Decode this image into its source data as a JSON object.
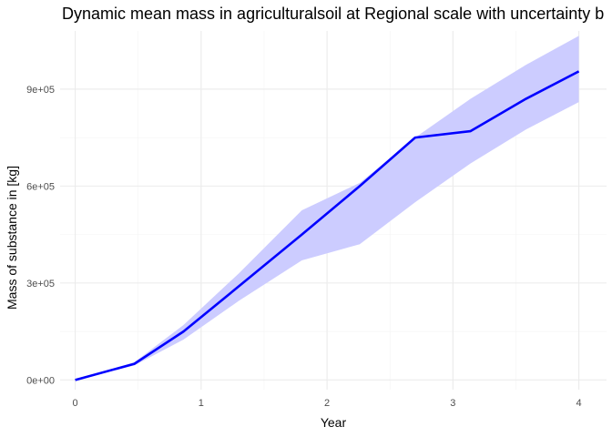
{
  "chart_data": {
    "type": "line",
    "title": "Dynamic mean mass in agriculturalsoil  at  Regional  scale with uncertainty b",
    "xlabel": "Year",
    "ylabel": "Mass of substance in [kg]",
    "xlim": [
      -0.12,
      4.22
    ],
    "ylim": [
      -30000,
      1080000
    ],
    "x_ticks": [
      0,
      1,
      2,
      3,
      4
    ],
    "x_tick_labels": [
      "0",
      "1",
      "2",
      "3",
      "4"
    ],
    "x_minor_ticks": [
      0.5,
      1.5,
      2.5,
      3.5
    ],
    "y_ticks": [
      0,
      300000,
      600000,
      900000
    ],
    "y_tick_labels": [
      "0e+00",
      "3e+05",
      "6e+05",
      "9e+05"
    ],
    "y_minor_ticks": [
      150000,
      450000,
      750000
    ],
    "grid": true,
    "legend": "none",
    "series": [
      {
        "x": [
          0,
          0.47,
          0.86,
          1.3,
          1.8,
          2.26,
          2.7,
          3.14,
          3.58,
          4.0
        ],
        "y": [
          0,
          50000,
          150000,
          290000,
          450000,
          600000,
          750000,
          770000,
          870000,
          955000
        ],
        "lower": [
          0,
          45000,
          125000,
          245000,
          370000,
          420000,
          550000,
          670000,
          775000,
          860000
        ],
        "upper": [
          0,
          55000,
          170000,
          330000,
          525000,
          610000,
          750000,
          870000,
          975000,
          1065000
        ],
        "line_color": "#0000ff",
        "band_color": "#ccccff"
      }
    ]
  }
}
